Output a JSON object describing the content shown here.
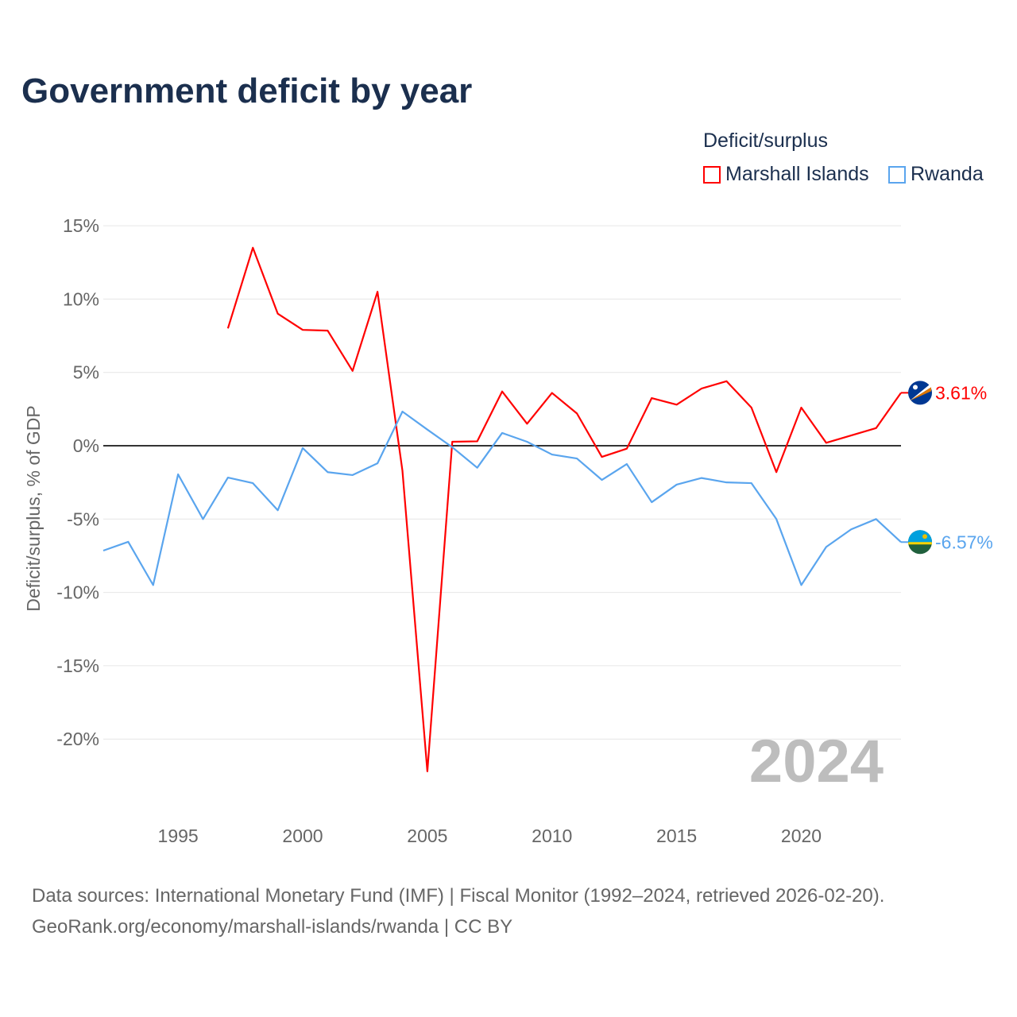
{
  "chart_data": {
    "type": "line",
    "title": "Government deficit by year",
    "ylabel": "Deficit/surplus, % of GDP",
    "xlabel": "",
    "legend_title": "Deficit/surplus",
    "legend_position": "top-right",
    "xlim": [
      1992,
      2024
    ],
    "ylim": [
      -23,
      15
    ],
    "x_ticks": [
      1995,
      2000,
      2005,
      2010,
      2015,
      2020
    ],
    "y_ticks": [
      15,
      10,
      5,
      0,
      -5,
      -10,
      -15,
      -20
    ],
    "y_tick_labels": [
      "15%",
      "10%",
      "5%",
      "0%",
      "-5%",
      "-10%",
      "-15%",
      "-20%"
    ],
    "year_watermark": "2024",
    "series": [
      {
        "name": "Marshall Islands",
        "color": "#ff0000",
        "end_label": "3.61%",
        "x": [
          1997,
          1998,
          1999,
          2000,
          2001,
          2002,
          2003,
          2004,
          2005,
          2006,
          2007,
          2008,
          2009,
          2010,
          2011,
          2012,
          2013,
          2014,
          2015,
          2016,
          2017,
          2018,
          2019,
          2020,
          2021,
          2022,
          2023,
          2024
        ],
        "values": [
          8.0,
          13.5,
          9.0,
          7.9,
          7.85,
          5.1,
          10.5,
          -1.7,
          -22.2,
          0.27,
          0.3,
          3.7,
          1.5,
          3.6,
          2.2,
          -0.76,
          -0.2,
          3.25,
          2.8,
          3.9,
          4.4,
          2.6,
          -1.8,
          2.6,
          0.2,
          0.7,
          1.2,
          3.61
        ]
      },
      {
        "name": "Rwanda",
        "color": "#5aa5ee",
        "end_label": "-6.57%",
        "x": [
          1992,
          1993,
          1994,
          1995,
          1996,
          1997,
          1998,
          1999,
          2000,
          2001,
          2002,
          2003,
          2004,
          2005,
          2006,
          2007,
          2008,
          2009,
          2010,
          2011,
          2012,
          2013,
          2014,
          2015,
          2016,
          2017,
          2018,
          2019,
          2020,
          2021,
          2022,
          2023,
          2024
        ],
        "values": [
          -7.15,
          -6.55,
          -9.5,
          -1.95,
          -5.0,
          -2.17,
          -2.55,
          -4.4,
          -0.16,
          -1.8,
          -2.0,
          -1.2,
          2.33,
          1.1,
          -0.1,
          -1.5,
          0.87,
          0.27,
          -0.6,
          -0.87,
          -2.33,
          -1.25,
          -3.85,
          -2.65,
          -2.2,
          -2.5,
          -2.55,
          -5.0,
          -9.5,
          -6.9,
          -5.7,
          -5.0,
          -6.57
        ]
      }
    ]
  },
  "footer": {
    "line1": "Data sources: International Monetary Fund (IMF) | Fiscal Monitor (1992–2024, retrieved 2026-02-20).",
    "line2": "GeoRank.org/economy/marshall-islands/rwanda | CC BY"
  }
}
